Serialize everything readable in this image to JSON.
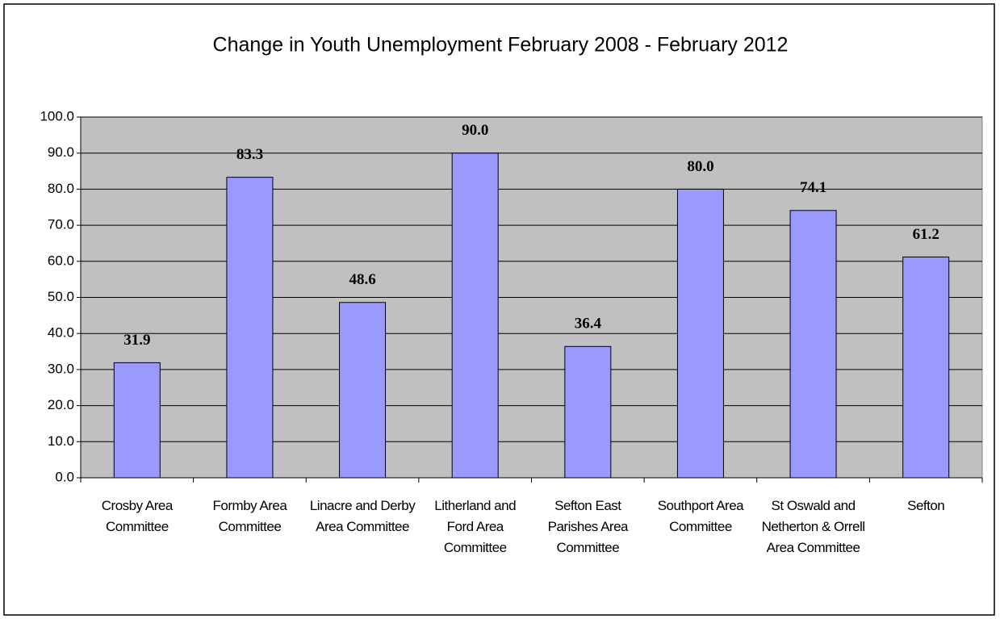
{
  "chart_data": {
    "type": "bar",
    "title": "Change in Youth Unemployment February 2008 - February 2012",
    "categories": [
      "Crosby Area Committee",
      "Formby Area Committee",
      "Linacre and Derby Area Committee",
      "Litherland and Ford Area Committee",
      "Sefton East Parishes Area Committee",
      "Southport Area Committee",
      "St Oswald and Netherton & Orrell Area Committee",
      "Sefton"
    ],
    "values": [
      31.9,
      83.3,
      48.6,
      90.0,
      36.4,
      80.0,
      74.1,
      61.2
    ],
    "value_labels": [
      "31.9",
      "83.3",
      "48.6",
      "90.0",
      "36.4",
      "80.0",
      "74.1",
      "61.2"
    ],
    "color": "#9999ff",
    "ylim": [
      0,
      100
    ],
    "yticks": [
      {
        "value": 0,
        "label": "0.0"
      },
      {
        "value": 10,
        "label": "10.0"
      },
      {
        "value": 20,
        "label": "20.0"
      },
      {
        "value": 30,
        "label": "30.0"
      },
      {
        "value": 40,
        "label": "40.0"
      },
      {
        "value": 50,
        "label": "50.0"
      },
      {
        "value": 60,
        "label": "60.0"
      },
      {
        "value": 70,
        "label": "70.0"
      },
      {
        "value": 80,
        "label": "80.0"
      },
      {
        "value": 90,
        "label": "90.0"
      },
      {
        "value": 100,
        "label": "100.0"
      }
    ],
    "grid": true
  }
}
